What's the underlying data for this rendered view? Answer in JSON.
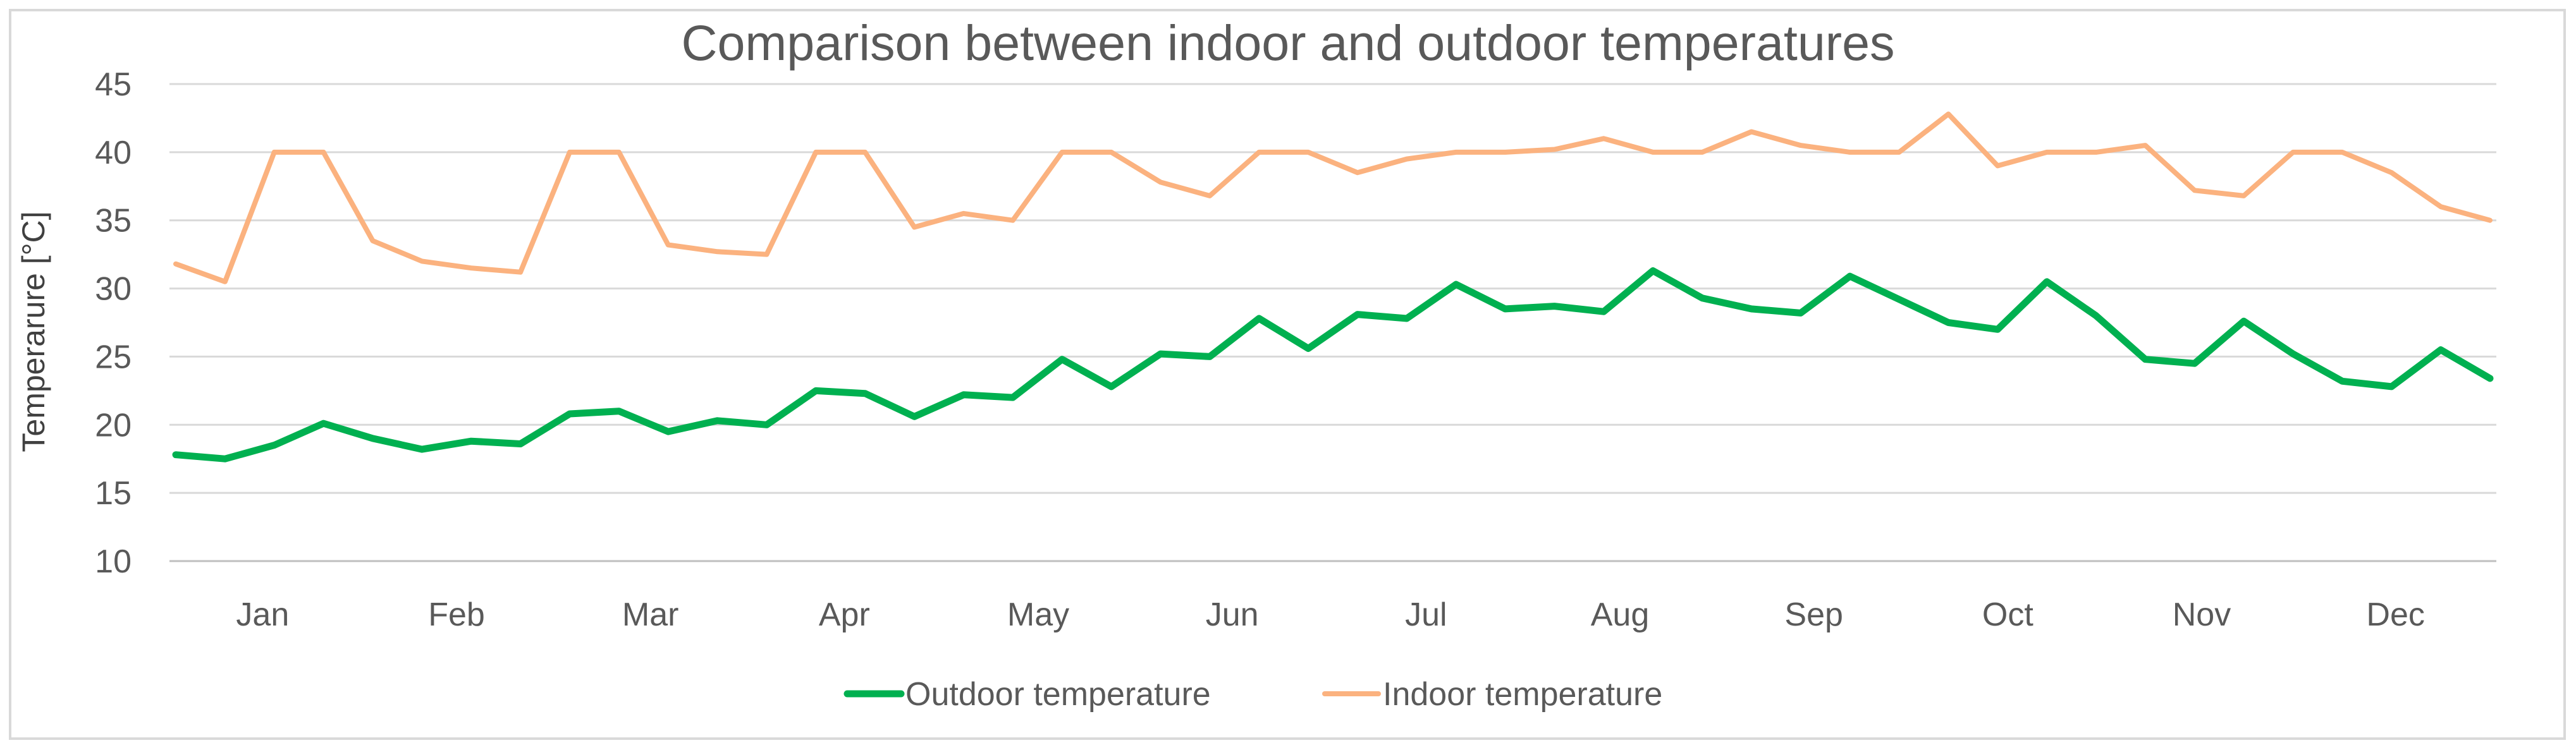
{
  "chart_data": {
    "type": "line",
    "title": "Comparison between indoor and outdoor temperatures",
    "xlabel": "",
    "ylabel": "Temperarure [°C]",
    "ylim": [
      10,
      45
    ],
    "yticks": [
      10,
      15,
      20,
      25,
      30,
      35,
      40,
      45
    ],
    "categories": [
      "Jan",
      "Feb",
      "Mar",
      "Apr",
      "May",
      "Jun",
      "Jul",
      "Aug",
      "Sep",
      "Oct",
      "Nov",
      "Dec"
    ],
    "x_unit": "week",
    "x": [
      0,
      1,
      2,
      3,
      4,
      5,
      6,
      7,
      8,
      9,
      10,
      11,
      12,
      13,
      14,
      15,
      16,
      17,
      18,
      19,
      20,
      21,
      22,
      23,
      24,
      25,
      26,
      27,
      28,
      29,
      30,
      31,
      32,
      33,
      34,
      35,
      36,
      37,
      38,
      39,
      40,
      41,
      42,
      43,
      44,
      45,
      46,
      47
    ],
    "legend_position": "bottom",
    "series": [
      {
        "name": "Outdoor temperature",
        "color": "#00b050",
        "values": [
          17.8,
          17.5,
          18.5,
          20.1,
          19.0,
          18.2,
          18.8,
          18.6,
          20.8,
          21.0,
          19.5,
          20.3,
          20.0,
          22.5,
          22.3,
          20.6,
          22.2,
          22.0,
          24.8,
          22.8,
          25.2,
          25.0,
          27.8,
          25.6,
          28.1,
          27.8,
          30.3,
          28.5,
          28.7,
          28.3,
          31.3,
          29.3,
          28.5,
          28.2,
          30.9,
          29.2,
          27.5,
          27.0,
          30.5,
          28.0,
          24.8,
          24.5,
          27.6,
          25.2,
          23.2,
          22.8,
          25.5,
          23.4
        ]
      },
      {
        "name": "Indoor temperature",
        "color": "#fbb27f",
        "values": [
          31.8,
          30.5,
          40.0,
          40.0,
          33.5,
          32.0,
          31.5,
          31.2,
          40.0,
          40.0,
          33.2,
          32.7,
          32.5,
          40.0,
          40.0,
          34.5,
          35.5,
          35.0,
          40.0,
          40.0,
          37.8,
          36.8,
          40.0,
          40.0,
          38.5,
          39.5,
          40.0,
          40.0,
          40.2,
          41.0,
          40.0,
          40.0,
          41.5,
          40.5,
          40.0,
          40.0,
          42.8,
          39.0,
          40.0,
          40.0,
          40.5,
          37.2,
          36.8,
          40.0,
          40.0,
          38.5,
          36.0,
          35.0
        ]
      }
    ]
  }
}
